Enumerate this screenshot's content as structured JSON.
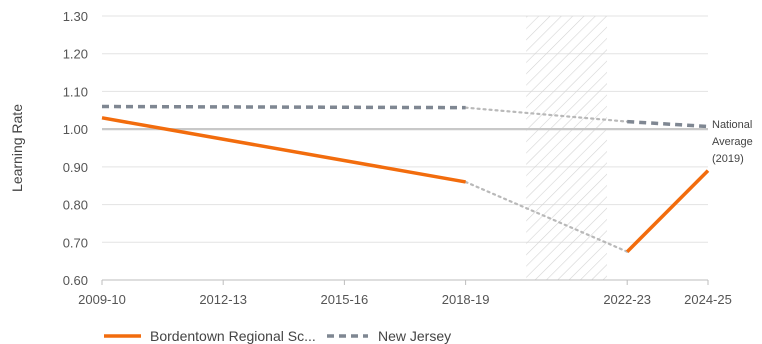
{
  "chart_data": {
    "type": "line",
    "title": "",
    "xlabel": "",
    "ylabel": "Learning Rate",
    "ylim": [
      0.6,
      1.3
    ],
    "y_ticks": [
      "0.60",
      "0.70",
      "0.80",
      "0.90",
      "1.00",
      "1.10",
      "1.20",
      "1.30"
    ],
    "x_range": [
      2009,
      2024
    ],
    "x_ticks": [
      {
        "label": "2009-10",
        "x": 2009
      },
      {
        "label": "2012-13",
        "x": 2012
      },
      {
        "label": "2015-16",
        "x": 2015
      },
      {
        "label": "2018-19",
        "x": 2018
      },
      {
        "label": "2022-23",
        "x": 2022
      },
      {
        "label": "2024-25",
        "x": 2024
      }
    ],
    "shaded_period": [
      2019.5,
      2021.5
    ],
    "reference_line": {
      "y": 1.0,
      "label_lines": [
        "National",
        "Average",
        "(2019)"
      ]
    },
    "series": [
      {
        "name": "Bordentown Regional Sc...",
        "color": "#f26c0d",
        "style": "solid",
        "points": [
          {
            "x": 2009,
            "y": 1.03
          },
          {
            "x": 2018,
            "y": 0.86
          }
        ],
        "gap_points": [
          {
            "x": 2018,
            "y": 0.86
          },
          {
            "x": 2022,
            "y": 0.675
          }
        ],
        "points_after": [
          {
            "x": 2022,
            "y": 0.675
          },
          {
            "x": 2024,
            "y": 0.89
          }
        ]
      },
      {
        "name": "New Jersey",
        "color": "#7f8792",
        "style": "dashed",
        "points": [
          {
            "x": 2009,
            "y": 1.06
          },
          {
            "x": 2018,
            "y": 1.057
          }
        ],
        "gap_points": [
          {
            "x": 2018,
            "y": 1.057
          },
          {
            "x": 2022,
            "y": 1.02
          }
        ],
        "points_after": [
          {
            "x": 2022,
            "y": 1.02
          },
          {
            "x": 2024,
            "y": 1.007
          }
        ]
      }
    ]
  }
}
